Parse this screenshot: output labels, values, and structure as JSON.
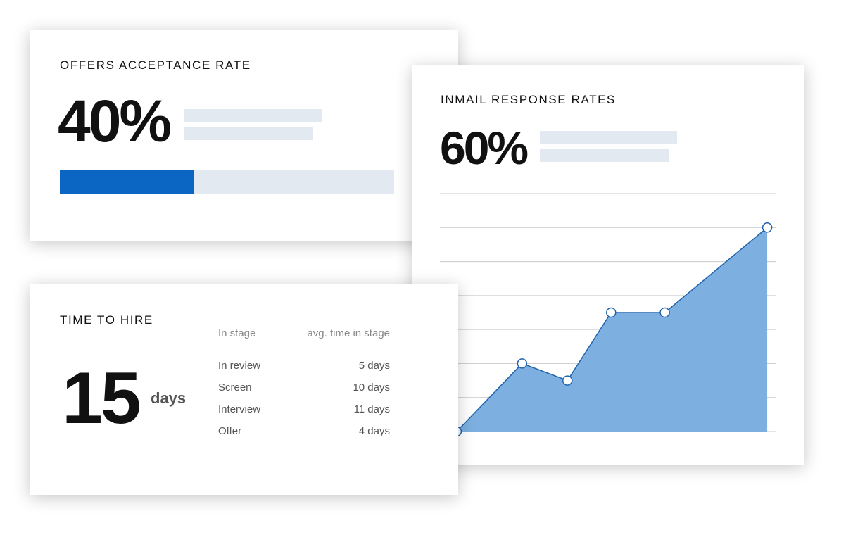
{
  "offers": {
    "title": "OFFERS ACCEPTANCE RATE",
    "value": 40,
    "value_label": "40%",
    "xlim": [
      0,
      100
    ]
  },
  "inmail": {
    "title": "INMAIL RESPONSE RATES",
    "value_label": "60%",
    "chart_data": {
      "type": "area",
      "x": [
        0.5,
        2.45,
        3.8,
        5.1,
        6.7,
        9.75
      ],
      "values": [
        0,
        2,
        1.5,
        3.5,
        3.5,
        6
      ],
      "xlim": [
        0,
        10
      ],
      "ylim": [
        0,
        7
      ],
      "yticks": [
        0,
        1,
        2,
        3,
        4,
        5,
        6,
        7
      ],
      "grid": true,
      "color": "#7dafe0",
      "line_color": "#1f63ad"
    }
  },
  "time_to_hire": {
    "title": "TIME TO HIRE",
    "value": "15",
    "unit": "days",
    "columns": [
      "In stage",
      "avg. time in stage"
    ],
    "rows": [
      [
        "In review",
        "5 days"
      ],
      [
        "Screen",
        "10 days"
      ],
      [
        "Interview",
        "11 days"
      ],
      [
        "Offer",
        "4 days"
      ]
    ]
  }
}
